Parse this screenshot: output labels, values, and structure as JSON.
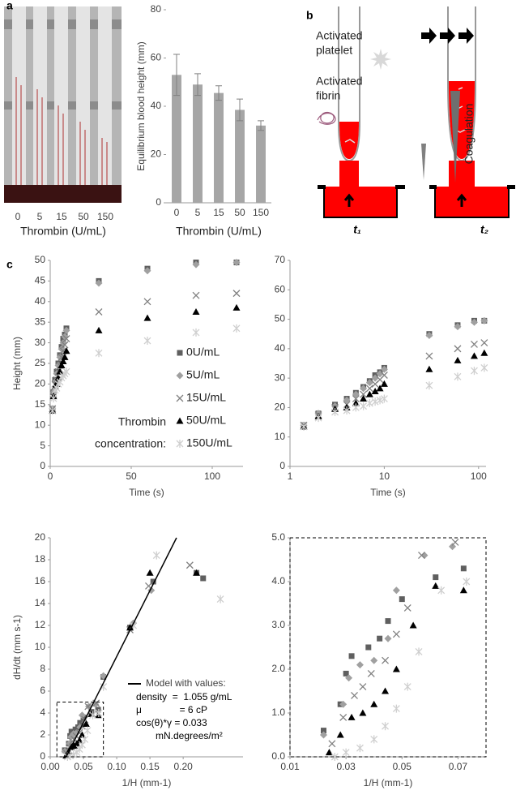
{
  "panel_labels": [
    "a",
    "b",
    "c"
  ],
  "panel_a": {
    "photo_labels": [
      "0",
      "5",
      "15",
      "50",
      "150"
    ],
    "photo_xlabel": "Thrombin (U/mL)"
  },
  "panel_b": {
    "platelet_label": [
      "Activated",
      "platelet"
    ],
    "fibrin_label": [
      "Activated",
      "fibrin"
    ],
    "coagulation": "Coagulation",
    "t1": "t₁",
    "t2": "t₂"
  },
  "chart_data": [
    {
      "type": "bar",
      "categories": [
        "0",
        "5",
        "15",
        "50",
        "150"
      ],
      "values": [
        53,
        49,
        45.5,
        38.5,
        32
      ],
      "errors": [
        8.5,
        4.5,
        3,
        4.5,
        2
      ],
      "color": "#a6a6a6",
      "ylim": [
        0,
        80
      ],
      "yticks": [
        0,
        20,
        40,
        60,
        80
      ],
      "ylabel": "Equilibrium blood height (mm)",
      "xlabel": "Thrombin (U/mL)"
    },
    {
      "type": "scatter",
      "xlim": [
        0,
        119
      ],
      "xticks": [
        0,
        50,
        100
      ],
      "ylim": [
        0,
        50
      ],
      "yticks": [
        0,
        5,
        10,
        15,
        20,
        25,
        30,
        35,
        40,
        45,
        50
      ],
      "ylabel": "Height (mm)",
      "xlabel": "Time (s)",
      "legend": true,
      "legend_title": [
        "Thrombin",
        "concentration:"
      ],
      "x": [
        1.4,
        2,
        3,
        4,
        5,
        6,
        7,
        8,
        9,
        10,
        30,
        60,
        90,
        115
      ],
      "series": [
        {
          "name": "0U/mL",
          "color": "#5f5f5f",
          "marker": "square",
          "values": [
            14,
            18,
            21,
            23,
            25,
            27,
            29,
            31,
            32,
            33.5,
            45,
            48,
            49.5,
            49.5
          ]
        },
        {
          "name": "5U/mL",
          "color": "#a0a0a0",
          "marker": "diamond",
          "values": [
            14,
            18,
            20.5,
            22.5,
            24.5,
            26.5,
            28.5,
            30,
            31.5,
            33,
            44.5,
            47.5,
            49,
            49.5
          ]
        },
        {
          "name": "15U/mL",
          "color": "#808080",
          "marker": "x",
          "values": [
            14,
            17.5,
            20,
            21,
            23,
            24.5,
            26.5,
            28,
            29.5,
            31,
            37.5,
            40,
            41.5,
            42
          ]
        },
        {
          "name": "50U/mL",
          "color": "#000000",
          "marker": "triangle",
          "values": [
            13.5,
            17,
            19.5,
            20,
            21.5,
            23,
            24.5,
            25.5,
            26.5,
            28,
            33,
            36,
            37.5,
            38.5
          ]
        },
        {
          "name": "150U/mL",
          "color": "#cfcfcf",
          "marker": "asterisk",
          "values": [
            13.5,
            16.5,
            18.5,
            19,
            20,
            20.5,
            21.5,
            22,
            22.5,
            23,
            27.5,
            30.5,
            32.5,
            33.5
          ]
        }
      ]
    },
    {
      "type": "scatter",
      "xscale": "log",
      "xlim": [
        1,
        120
      ],
      "xticks": [
        1,
        10,
        100
      ],
      "ylim": [
        0,
        70
      ],
      "yticks": [
        0,
        10,
        20,
        30,
        40,
        50,
        60,
        70
      ],
      "xlabel": "Time (s)",
      "x": [
        1.4,
        2,
        3,
        4,
        5,
        6,
        7,
        8,
        9,
        10,
        30,
        60,
        90,
        115
      ],
      "series": [
        {
          "name": "0U/mL",
          "color": "#5f5f5f",
          "marker": "square",
          "values": [
            14,
            18,
            21,
            23,
            25,
            27,
            29,
            31,
            32,
            33.5,
            45,
            48,
            49.5,
            49.5
          ]
        },
        {
          "name": "5U/mL",
          "color": "#a0a0a0",
          "marker": "diamond",
          "values": [
            14,
            18,
            20.5,
            22.5,
            24.5,
            26.5,
            28.5,
            30,
            31.5,
            33,
            44.5,
            47.5,
            49,
            49.5
          ]
        },
        {
          "name": "15U/mL",
          "color": "#808080",
          "marker": "x",
          "values": [
            14,
            17.5,
            20,
            21,
            23,
            24.5,
            26.5,
            28,
            29.5,
            31,
            37.5,
            40,
            41.5,
            42
          ]
        },
        {
          "name": "50U/mL",
          "color": "#000000",
          "marker": "triangle",
          "values": [
            13.5,
            17,
            19.5,
            20,
            21.5,
            23,
            24.5,
            25.5,
            26.5,
            28,
            33,
            36,
            37.5,
            38.5
          ]
        },
        {
          "name": "150U/mL",
          "color": "#cfcfcf",
          "marker": "asterisk",
          "values": [
            13.5,
            16.5,
            18.5,
            19,
            20,
            20.5,
            21.5,
            22,
            22.5,
            23,
            27.5,
            30.5,
            32.5,
            33.5
          ]
        }
      ]
    },
    {
      "type": "scatter",
      "xlim": [
        0,
        0.29
      ],
      "xticks": [
        {
          "value": 0,
          "label": "0.00"
        },
        {
          "value": 0.05,
          "label": "0.05"
        },
        {
          "value": 0.1,
          "label": "0.10"
        },
        {
          "value": 0.15,
          "label": "0.15"
        },
        {
          "value": 0.2,
          "label": "0.20"
        }
      ],
      "ylim": [
        0,
        20
      ],
      "yticks": [
        0,
        2,
        4,
        6,
        8,
        10,
        12,
        14,
        16,
        18,
        20
      ],
      "ylabel": "dH/dt (mm s-1)",
      "xlabel": "1/H (mm-1)",
      "zoom_box": true,
      "model": {
        "name": "Model with values:",
        "color": "#000000",
        "x": [
          0.024,
          0.19
        ],
        "values": [
          0,
          20
        ]
      },
      "annotations": [
        "density  =  1.055 g/mL",
        "μ              = 6 cP",
        "cos(θ)*γ = 0.033",
        "mN.degrees/m²"
      ],
      "series": [
        {
          "name": "0U/mL",
          "color": "#5f5f5f",
          "marker": "square",
          "x": [
            0.022,
            0.028,
            0.03,
            0.032,
            0.038,
            0.042,
            0.045,
            0.05,
            0.062,
            0.072,
            0.08,
            0.12,
            0.155,
            0.22,
            0.23
          ],
          "values": [
            0.6,
            1.2,
            1.9,
            2.3,
            2.5,
            2.7,
            3.1,
            3.6,
            4.1,
            4.3,
            7.3,
            11.8,
            16,
            16.8,
            16.3
          ]
        },
        {
          "name": "5U/mL",
          "color": "#a0a0a0",
          "marker": "diamond",
          "x": [
            0.022,
            0.029,
            0.031,
            0.035,
            0.04,
            0.045,
            0.048,
            0.058,
            0.068,
            0.08,
            0.125,
            0.152
          ],
          "values": [
            0.5,
            1.2,
            1.8,
            2.1,
            2.2,
            2.7,
            3.8,
            4.6,
            4.8,
            7.4,
            12.2,
            15.2
          ]
        },
        {
          "name": "15U/mL",
          "color": "#808080",
          "marker": "x",
          "x": [
            0.025,
            0.029,
            0.033,
            0.036,
            0.039,
            0.044,
            0.048,
            0.052,
            0.057,
            0.069,
            0.12,
            0.148,
            0.21
          ],
          "values": [
            0.3,
            0.9,
            1.4,
            1.6,
            1.9,
            2.2,
            2.8,
            3.4,
            4.6,
            4.9,
            11.6,
            15.6,
            17.5
          ]
        },
        {
          "name": "50U/mL",
          "color": "#000000",
          "marker": "triangle",
          "x": [
            0.024,
            0.028,
            0.032,
            0.036,
            0.04,
            0.044,
            0.048,
            0.054,
            0.062,
            0.072,
            0.12,
            0.15,
            0.22
          ],
          "values": [
            0.1,
            0.5,
            0.9,
            1,
            1.2,
            1.5,
            2,
            3,
            3.9,
            3.8,
            11.8,
            16.8,
            16.8
          ]
        },
        {
          "name": "150U/mL",
          "color": "#cfcfcf",
          "marker": "asterisk",
          "x": [
            0.026,
            0.03,
            0.035,
            0.04,
            0.044,
            0.048,
            0.052,
            0.056,
            0.064,
            0.073,
            0.08,
            0.125,
            0.16,
            0.256
          ],
          "values": [
            0,
            0.1,
            0.2,
            0.4,
            0.7,
            1.1,
            1.6,
            2.4,
            3.8,
            4,
            6.4,
            12,
            18.4,
            14.4
          ]
        }
      ]
    },
    {
      "type": "scatter",
      "frame": "dashed",
      "xlim": [
        0.01,
        0.08
      ],
      "xticks": [
        {
          "value": 0.01,
          "label": "0.01"
        },
        {
          "value": 0.03,
          "label": "0.03"
        },
        {
          "value": 0.05,
          "label": "0.05"
        },
        {
          "value": 0.07,
          "label": "0.07"
        }
      ],
      "ylim": [
        0,
        5
      ],
      "yticks": [
        {
          "value": 0,
          "label": "0.0"
        },
        {
          "value": 1,
          "label": "1.0"
        },
        {
          "value": 2,
          "label": "2.0"
        },
        {
          "value": 3,
          "label": "3.0"
        },
        {
          "value": 4,
          "label": "4.0"
        },
        {
          "value": 5,
          "label": "5.0"
        }
      ],
      "xlabel": "1/H (mm-1)",
      "series": [
        {
          "name": "0U/mL",
          "color": "#5f5f5f",
          "marker": "square",
          "x": [
            0.022,
            0.028,
            0.03,
            0.032,
            0.038,
            0.042,
            0.045,
            0.05,
            0.062,
            0.072
          ],
          "values": [
            0.6,
            1.2,
            1.9,
            2.3,
            2.5,
            2.7,
            3.1,
            3.6,
            4.1,
            4.3
          ]
        },
        {
          "name": "5U/mL",
          "color": "#a0a0a0",
          "marker": "diamond",
          "x": [
            0.022,
            0.029,
            0.031,
            0.035,
            0.04,
            0.045,
            0.048,
            0.058,
            0.068
          ],
          "values": [
            0.5,
            1.2,
            1.8,
            2.1,
            2.2,
            2.7,
            3.8,
            4.6,
            4.8
          ]
        },
        {
          "name": "15U/mL",
          "color": "#808080",
          "marker": "x",
          "x": [
            0.025,
            0.029,
            0.033,
            0.036,
            0.039,
            0.044,
            0.048,
            0.052,
            0.057,
            0.069
          ],
          "values": [
            0.3,
            0.9,
            1.4,
            1.6,
            1.9,
            2.2,
            2.8,
            3.4,
            4.6,
            4.9
          ]
        },
        {
          "name": "50U/mL",
          "color": "#000000",
          "marker": "triangle",
          "x": [
            0.024,
            0.028,
            0.032,
            0.036,
            0.04,
            0.044,
            0.048,
            0.054,
            0.062,
            0.072
          ],
          "values": [
            0.1,
            0.5,
            0.9,
            1,
            1.2,
            1.5,
            2,
            3,
            3.9,
            3.8
          ]
        },
        {
          "name": "150U/mL",
          "color": "#cfcfcf",
          "marker": "asterisk",
          "x": [
            0.026,
            0.03,
            0.035,
            0.04,
            0.044,
            0.048,
            0.052,
            0.056,
            0.064,
            0.073
          ],
          "values": [
            0,
            0.1,
            0.2,
            0.4,
            0.7,
            1.1,
            1.6,
            2.4,
            3.8,
            4
          ]
        }
      ]
    }
  ]
}
